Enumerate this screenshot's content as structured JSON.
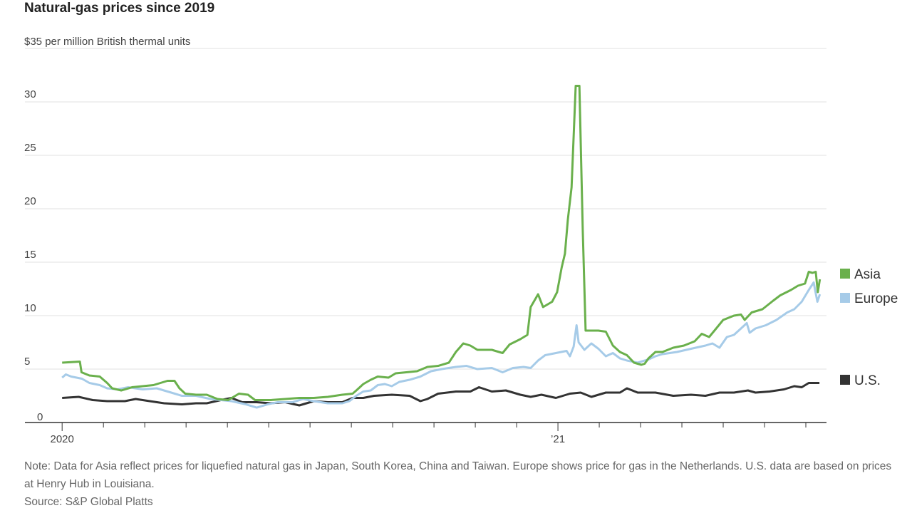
{
  "chart_data": {
    "type": "line",
    "title": "Natural-gas prices since 2019",
    "ylabel": "$35 per million British thermal units",
    "xlabel": "",
    "x_units": "months since Jan 2020",
    "xlim": [
      -0.9,
      18.5
    ],
    "ylim": [
      0,
      35
    ],
    "yticks": [
      0,
      5,
      10,
      15,
      20,
      25,
      30,
      35
    ],
    "ytick_labels": [
      "0",
      "5",
      "10",
      "15",
      "20",
      "25",
      "30",
      ""
    ],
    "xticks": [
      0,
      1,
      2,
      3,
      4,
      5,
      6,
      7,
      8,
      9,
      10,
      11,
      12,
      13,
      14,
      15,
      16,
      17,
      18
    ],
    "xtick_labels": [
      {
        "x": 0,
        "label": "2020"
      },
      {
        "x": 12,
        "label": "’21"
      }
    ],
    "grid": true,
    "legend_placement": "right",
    "series": [
      {
        "name": "Asia",
        "color": "#6ab04c",
        "points": [
          [
            0,
            5.6
          ],
          [
            0.43,
            5.7
          ],
          [
            0.47,
            4.7
          ],
          [
            0.66,
            4.4
          ],
          [
            0.91,
            4.3
          ],
          [
            1.09,
            3.7
          ],
          [
            1.21,
            3.2
          ],
          [
            1.43,
            3.0
          ],
          [
            1.69,
            3.3
          ],
          [
            1.95,
            3.4
          ],
          [
            2.21,
            3.5
          ],
          [
            2.38,
            3.7
          ],
          [
            2.55,
            3.9
          ],
          [
            2.72,
            3.9
          ],
          [
            2.84,
            3.2
          ],
          [
            2.98,
            2.7
          ],
          [
            3.24,
            2.6
          ],
          [
            3.5,
            2.6
          ],
          [
            3.76,
            2.2
          ],
          [
            4.02,
            2.1
          ],
          [
            4.28,
            2.7
          ],
          [
            4.5,
            2.6
          ],
          [
            4.67,
            2.1
          ],
          [
            5.05,
            2.1
          ],
          [
            5.4,
            2.2
          ],
          [
            5.74,
            2.3
          ],
          [
            6.09,
            2.3
          ],
          [
            6.43,
            2.4
          ],
          [
            6.78,
            2.6
          ],
          [
            7.03,
            2.7
          ],
          [
            7.12,
            3.0
          ],
          [
            7.29,
            3.6
          ],
          [
            7.47,
            4.0
          ],
          [
            7.64,
            4.3
          ],
          [
            7.9,
            4.2
          ],
          [
            8.07,
            4.6
          ],
          [
            8.33,
            4.7
          ],
          [
            8.59,
            4.8
          ],
          [
            8.84,
            5.2
          ],
          [
            9.1,
            5.3
          ],
          [
            9.36,
            5.6
          ],
          [
            9.53,
            6.6
          ],
          [
            9.71,
            7.4
          ],
          [
            9.88,
            7.2
          ],
          [
            10.05,
            6.8
          ],
          [
            10.4,
            6.8
          ],
          [
            10.66,
            6.5
          ],
          [
            10.83,
            7.3
          ],
          [
            11.09,
            7.8
          ],
          [
            11.26,
            8.2
          ],
          [
            11.34,
            10.8
          ],
          [
            11.52,
            12.0
          ],
          [
            11.64,
            10.8
          ],
          [
            11.86,
            11.3
          ],
          [
            11.98,
            12.2
          ],
          [
            12.09,
            14.5
          ],
          [
            12.17,
            15.8
          ],
          [
            12.24,
            19.0
          ],
          [
            12.33,
            22.0
          ],
          [
            12.43,
            31.5
          ],
          [
            12.52,
            31.5
          ],
          [
            12.6,
            18.0
          ],
          [
            12.67,
            8.6
          ],
          [
            12.81,
            8.6
          ],
          [
            12.98,
            8.6
          ],
          [
            13.16,
            8.5
          ],
          [
            13.33,
            7.2
          ],
          [
            13.5,
            6.6
          ],
          [
            13.67,
            6.3
          ],
          [
            13.84,
            5.6
          ],
          [
            14.02,
            5.4
          ],
          [
            14.1,
            5.5
          ],
          [
            14.19,
            6.0
          ],
          [
            14.36,
            6.6
          ],
          [
            14.53,
            6.6
          ],
          [
            14.79,
            7.0
          ],
          [
            15.05,
            7.2
          ],
          [
            15.31,
            7.6
          ],
          [
            15.48,
            8.3
          ],
          [
            15.66,
            8.0
          ],
          [
            15.83,
            8.8
          ],
          [
            16.0,
            9.6
          ],
          [
            16.26,
            10.0
          ],
          [
            16.43,
            10.1
          ],
          [
            16.52,
            9.6
          ],
          [
            16.69,
            10.3
          ],
          [
            16.95,
            10.6
          ],
          [
            17.21,
            11.4
          ],
          [
            17.38,
            11.9
          ],
          [
            17.64,
            12.4
          ],
          [
            17.81,
            12.8
          ],
          [
            17.98,
            13.0
          ],
          [
            18.07,
            14.1
          ],
          [
            18.16,
            14.0
          ],
          [
            18.24,
            14.1
          ],
          [
            18.29,
            12.2
          ],
          [
            18.34,
            13.4
          ]
        ]
      },
      {
        "name": "Europe",
        "color": "#a6cbe8",
        "points": [
          [
            0,
            4.2
          ],
          [
            0.09,
            4.5
          ],
          [
            0.22,
            4.3
          ],
          [
            0.48,
            4.1
          ],
          [
            0.66,
            3.7
          ],
          [
            0.91,
            3.5
          ],
          [
            1.09,
            3.2
          ],
          [
            1.34,
            3.1
          ],
          [
            1.6,
            3.3
          ],
          [
            1.95,
            3.1
          ],
          [
            2.29,
            3.2
          ],
          [
            2.64,
            2.8
          ],
          [
            2.9,
            2.5
          ],
          [
            3.24,
            2.5
          ],
          [
            3.59,
            2.2
          ],
          [
            3.84,
            2.1
          ],
          [
            4.1,
            2.0
          ],
          [
            4.45,
            1.7
          ],
          [
            4.71,
            1.4
          ],
          [
            4.97,
            1.7
          ],
          [
            5.22,
            1.9
          ],
          [
            5.57,
            1.9
          ],
          [
            5.83,
            2.2
          ],
          [
            6.09,
            2.0
          ],
          [
            6.43,
            1.8
          ],
          [
            6.78,
            1.8
          ],
          [
            6.95,
            2.0
          ],
          [
            7.12,
            2.5
          ],
          [
            7.29,
            2.9
          ],
          [
            7.47,
            3.0
          ],
          [
            7.64,
            3.5
          ],
          [
            7.81,
            3.6
          ],
          [
            7.98,
            3.4
          ],
          [
            8.16,
            3.8
          ],
          [
            8.41,
            4.0
          ],
          [
            8.67,
            4.3
          ],
          [
            8.93,
            4.8
          ],
          [
            9.19,
            5.0
          ],
          [
            9.53,
            5.2
          ],
          [
            9.79,
            5.3
          ],
          [
            10.05,
            5.0
          ],
          [
            10.4,
            5.1
          ],
          [
            10.66,
            4.7
          ],
          [
            10.91,
            5.1
          ],
          [
            11.17,
            5.2
          ],
          [
            11.34,
            5.1
          ],
          [
            11.52,
            5.8
          ],
          [
            11.69,
            6.3
          ],
          [
            11.95,
            6.5
          ],
          [
            12.21,
            6.7
          ],
          [
            12.29,
            6.2
          ],
          [
            12.38,
            7.1
          ],
          [
            12.45,
            9.1
          ],
          [
            12.5,
            7.5
          ],
          [
            12.64,
            6.8
          ],
          [
            12.81,
            7.4
          ],
          [
            12.98,
            6.9
          ],
          [
            13.16,
            6.2
          ],
          [
            13.33,
            6.5
          ],
          [
            13.5,
            6.0
          ],
          [
            13.67,
            5.8
          ],
          [
            13.93,
            5.6
          ],
          [
            14.19,
            5.9
          ],
          [
            14.36,
            6.2
          ],
          [
            14.53,
            6.4
          ],
          [
            14.88,
            6.6
          ],
          [
            15.22,
            6.9
          ],
          [
            15.57,
            7.2
          ],
          [
            15.74,
            7.4
          ],
          [
            15.91,
            7.0
          ],
          [
            16.09,
            8.0
          ],
          [
            16.26,
            8.2
          ],
          [
            16.43,
            8.8
          ],
          [
            16.57,
            9.3
          ],
          [
            16.64,
            8.4
          ],
          [
            16.78,
            8.8
          ],
          [
            17.03,
            9.1
          ],
          [
            17.29,
            9.6
          ],
          [
            17.55,
            10.3
          ],
          [
            17.72,
            10.6
          ],
          [
            17.9,
            11.3
          ],
          [
            18.07,
            12.4
          ],
          [
            18.19,
            13.1
          ],
          [
            18.28,
            11.3
          ],
          [
            18.34,
            12.0
          ]
        ]
      },
      {
        "name": "U.S.",
        "color": "#333333",
        "points": [
          [
            0,
            2.3
          ],
          [
            0.4,
            2.4
          ],
          [
            0.74,
            2.1
          ],
          [
            1.09,
            2.0
          ],
          [
            1.52,
            2.0
          ],
          [
            1.78,
            2.2
          ],
          [
            2.12,
            2.0
          ],
          [
            2.47,
            1.8
          ],
          [
            2.9,
            1.7
          ],
          [
            3.24,
            1.8
          ],
          [
            3.5,
            1.8
          ],
          [
            3.84,
            2.1
          ],
          [
            4.1,
            2.3
          ],
          [
            4.36,
            1.9
          ],
          [
            4.71,
            1.9
          ],
          [
            5.05,
            1.8
          ],
          [
            5.4,
            1.9
          ],
          [
            5.74,
            1.6
          ],
          [
            6.09,
            2.0
          ],
          [
            6.43,
            1.9
          ],
          [
            6.78,
            1.9
          ],
          [
            7.03,
            2.3
          ],
          [
            7.29,
            2.3
          ],
          [
            7.55,
            2.5
          ],
          [
            7.98,
            2.6
          ],
          [
            8.41,
            2.5
          ],
          [
            8.67,
            2.0
          ],
          [
            8.84,
            2.2
          ],
          [
            9.1,
            2.7
          ],
          [
            9.53,
            2.9
          ],
          [
            9.88,
            2.9
          ],
          [
            10.09,
            3.3
          ],
          [
            10.4,
            2.9
          ],
          [
            10.74,
            3.0
          ],
          [
            11.09,
            2.6
          ],
          [
            11.34,
            2.4
          ],
          [
            11.6,
            2.6
          ],
          [
            11.95,
            2.3
          ],
          [
            12.29,
            2.7
          ],
          [
            12.55,
            2.8
          ],
          [
            12.81,
            2.4
          ],
          [
            13.16,
            2.8
          ],
          [
            13.5,
            2.8
          ],
          [
            13.67,
            3.2
          ],
          [
            13.93,
            2.8
          ],
          [
            14.36,
            2.8
          ],
          [
            14.79,
            2.5
          ],
          [
            15.22,
            2.6
          ],
          [
            15.57,
            2.5
          ],
          [
            15.91,
            2.8
          ],
          [
            16.26,
            2.8
          ],
          [
            16.6,
            3.0
          ],
          [
            16.78,
            2.8
          ],
          [
            17.12,
            2.9
          ],
          [
            17.47,
            3.1
          ],
          [
            17.72,
            3.4
          ],
          [
            17.9,
            3.3
          ],
          [
            18.07,
            3.7
          ],
          [
            18.24,
            3.7
          ],
          [
            18.33,
            3.7
          ]
        ]
      }
    ],
    "legend": [
      "Asia",
      "Europe",
      "U.S."
    ]
  },
  "notes": {
    "note": "Note: Data for Asia reflect prices for liquefied natural gas in Japan, South Korea, China and Taiwan. Europe shows price for gas in the Netherlands. U.S. data are based on prices at Henry Hub in Louisiana.",
    "source": "Source: S&P Global Platts"
  }
}
